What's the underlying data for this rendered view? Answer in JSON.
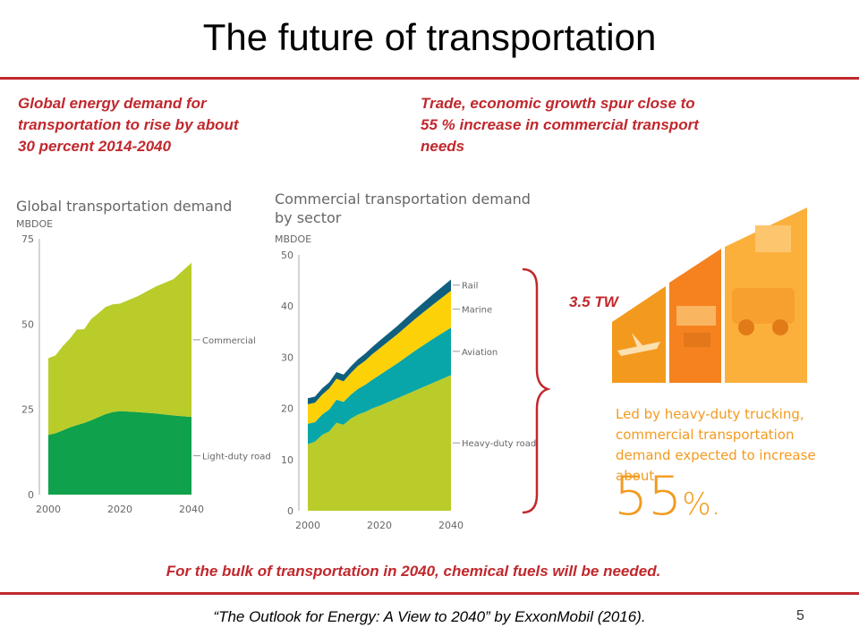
{
  "slide": {
    "title": "The future of transportation",
    "left_note": "Global energy demand for transportation to rise by about 30 percent 2014-2040",
    "right_note": "Trade, economic growth spur close to 55 % increase in commercial transport needs",
    "bottom_note": "For the bulk of transportation in 2040, chemical fuels will be needed.",
    "citation": "“The Outlook for Energy: A View to 2040” by ExxonMobil (2016).",
    "page_number": "5",
    "brace_label": "3.5 TW",
    "infographic_text": "Led by heavy-duty trucking, commercial transportation demand expected to increase about",
    "infographic_big": "55",
    "infographic_pct": "%."
  },
  "colors": {
    "red": "#c0282d",
    "light_duty": "#0fa14b",
    "commercial": "#b9cc2a",
    "heavy_duty": "#b9cc2a",
    "aviation": "#08a6a8",
    "marine": "#fdd108",
    "rail": "#105f7e",
    "orange": "#f39a1e"
  },
  "chart_data": [
    {
      "type": "area",
      "stacked": true,
      "title": "Global transportation demand",
      "ylabel": "MBDOE",
      "ylim": [
        0,
        75
      ],
      "yticks": [
        0,
        25,
        50,
        75
      ],
      "xlim": [
        2000,
        2040
      ],
      "xticks": [
        2000,
        2020,
        2040
      ],
      "series": [
        {
          "name": "Light-duty road",
          "x": [
            2000,
            2002,
            2004,
            2006,
            2008,
            2010,
            2012,
            2014,
            2016,
            2018,
            2020,
            2025,
            2030,
            2035,
            2040
          ],
          "values": [
            17.5,
            18.0,
            18.8,
            19.7,
            20.4,
            21.0,
            21.8,
            22.7,
            23.6,
            24.2,
            24.5,
            24.2,
            23.8,
            23.2,
            22.8
          ]
        },
        {
          "name": "Commercial",
          "x": [
            2000,
            2002,
            2004,
            2006,
            2008,
            2010,
            2012,
            2014,
            2016,
            2018,
            2020,
            2025,
            2030,
            2035,
            2040
          ],
          "values": [
            22.5,
            22.8,
            24.7,
            26.0,
            28.0,
            27.5,
            29.7,
            30.5,
            31.4,
            31.6,
            31.5,
            34.0,
            37.2,
            40.0,
            45.2
          ]
        }
      ]
    },
    {
      "type": "area",
      "stacked": true,
      "title": "Commercial transportation demand by sector",
      "ylabel": "MBDOE",
      "ylim": [
        0,
        50
      ],
      "yticks": [
        0,
        10,
        20,
        30,
        40,
        50
      ],
      "xlim": [
        2000,
        2040
      ],
      "xticks": [
        2000,
        2020,
        2040
      ],
      "series": [
        {
          "name": "Heavy-duty road",
          "x": [
            2000,
            2002,
            2004,
            2006,
            2008,
            2010,
            2012,
            2014,
            2016,
            2018,
            2020,
            2025,
            2030,
            2035,
            2040
          ],
          "values": [
            13.0,
            13.5,
            14.8,
            15.5,
            17.2,
            16.8,
            18.0,
            18.8,
            19.3,
            20.0,
            20.5,
            22.0,
            23.5,
            25.0,
            26.5
          ]
        },
        {
          "name": "Aviation",
          "x": [
            2000,
            2002,
            2004,
            2006,
            2008,
            2010,
            2012,
            2014,
            2016,
            2018,
            2020,
            2025,
            2030,
            2035,
            2040
          ],
          "values": [
            4.0,
            3.8,
            4.0,
            4.3,
            4.5,
            4.5,
            4.7,
            5.0,
            5.3,
            5.6,
            6.0,
            6.8,
            7.8,
            8.6,
            9.3
          ]
        },
        {
          "name": "Marine",
          "x": [
            2000,
            2002,
            2004,
            2006,
            2008,
            2010,
            2012,
            2014,
            2016,
            2018,
            2020,
            2025,
            2030,
            2035,
            2040
          ],
          "values": [
            3.8,
            3.8,
            3.9,
            4.1,
            4.1,
            4.0,
            4.2,
            4.5,
            4.7,
            5.0,
            5.2,
            5.7,
            6.2,
            6.7,
            7.2
          ]
        },
        {
          "name": "Rail",
          "x": [
            2000,
            2002,
            2004,
            2006,
            2008,
            2010,
            2012,
            2014,
            2016,
            2018,
            2020,
            2025,
            2030,
            2035,
            2040
          ],
          "values": [
            1.2,
            1.2,
            1.2,
            1.2,
            1.3,
            1.3,
            1.3,
            1.3,
            1.4,
            1.4,
            1.5,
            1.6,
            1.8,
            2.0,
            2.2
          ]
        }
      ]
    }
  ]
}
